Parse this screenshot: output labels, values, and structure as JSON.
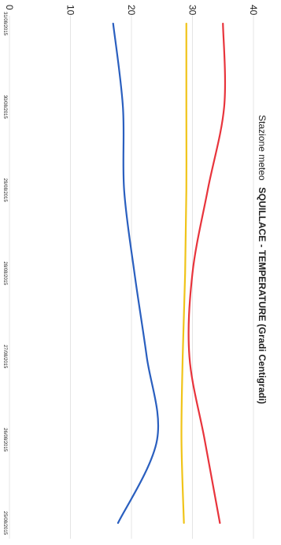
{
  "chart_data": {
    "type": "line",
    "title_prefix": "Stazione meteo",
    "title_main": "SQUILLACE - TEMPERATURE (Gradi Centigradi)",
    "x": [
      "31/08/2015",
      "30/08/2015",
      "29/08/2015",
      "28/08/2015",
      "27/08/2015",
      "26/08/2015",
      "25/08/2015"
    ],
    "y_ticks": [
      0,
      10,
      20,
      30,
      40
    ],
    "ylim": [
      0,
      40
    ],
    "grid": "horizontal",
    "series": [
      {
        "color": "#e8343c",
        "values": [
          35.0,
          35.2,
          32.5,
          30.0,
          29.5,
          32.0,
          34.5
        ]
      },
      {
        "color": "#f0c419",
        "values": [
          29.0,
          29.0,
          29.0,
          28.8,
          28.4,
          28.2,
          28.6
        ]
      },
      {
        "color": "#2a5fbf",
        "values": [
          17.0,
          18.6,
          18.8,
          20.5,
          22.5,
          24.2,
          17.8
        ]
      }
    ]
  }
}
